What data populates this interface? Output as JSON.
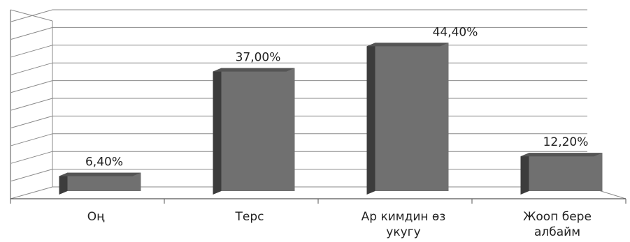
{
  "chart_data": {
    "type": "bar",
    "style": "3d-columns",
    "categories": [
      [
        "Оң"
      ],
      [
        "Терс"
      ],
      [
        "Ар кимдин өз",
        "укугу"
      ],
      [
        "Жоопн бере",
        "албайм"
      ]
    ],
    "values": [
      6.4,
      37.0,
      44.4,
      12.2
    ],
    "value_labels": [
      "6,40%",
      "37,00%",
      "44,40%",
      "12,20%"
    ],
    "ylim": [
      0,
      50
    ],
    "grid": true,
    "colors": {
      "bar_front": "#707070",
      "bar_side": "#3c3c3c",
      "bar_top": "#555555",
      "grid": "#8a8a8a"
    }
  }
}
